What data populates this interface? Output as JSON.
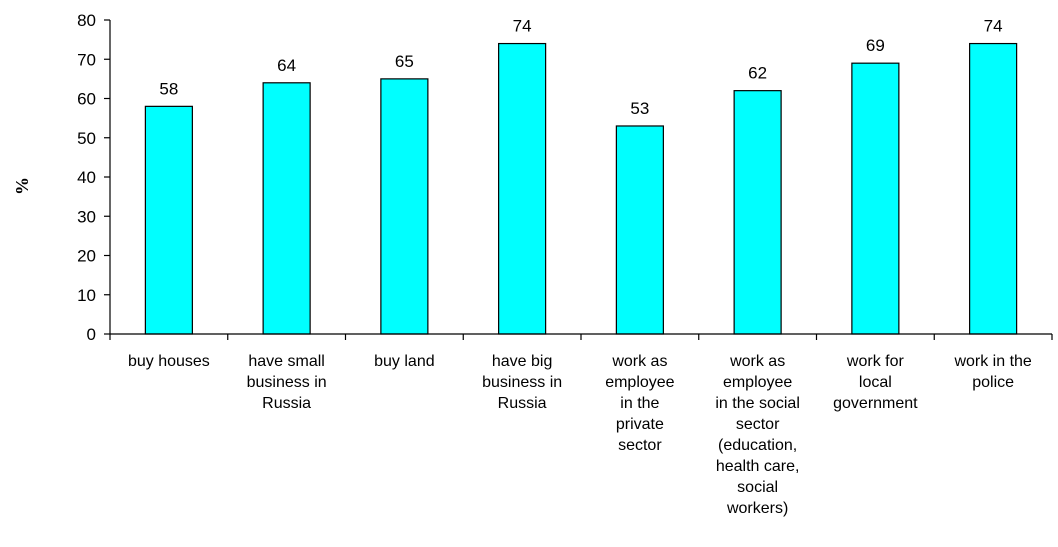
{
  "chart_data": {
    "type": "bar",
    "title": "",
    "xlabel": "",
    "ylabel": "%",
    "ylim": [
      0,
      80
    ],
    "yticks": [
      0,
      10,
      20,
      30,
      40,
      50,
      60,
      70,
      80
    ],
    "grid": false,
    "bar_color": "#00FFFF",
    "bar_edge_color": "#000000",
    "categories": [
      "buy houses",
      "have small business in Russia",
      "buy land",
      "have big business in Russia",
      "work as employee in the private sector",
      "work as employee in the social sector (education, health care, social workers)",
      "work for local government",
      "work in the police"
    ],
    "category_lines": [
      [
        "buy houses"
      ],
      [
        "have small",
        "business in",
        "Russia"
      ],
      [
        "buy land"
      ],
      [
        "have big",
        "business in",
        "Russia"
      ],
      [
        "work as",
        "employee",
        "in the",
        "private",
        "sector"
      ],
      [
        "work as",
        "employee",
        "in the social",
        "sector",
        "(education,",
        "health care,",
        "social",
        "workers)"
      ],
      [
        "work for",
        "local",
        "government"
      ],
      [
        "work in the",
        "police"
      ]
    ],
    "values": [
      58,
      64,
      65,
      74,
      53,
      62,
      69,
      74
    ]
  }
}
